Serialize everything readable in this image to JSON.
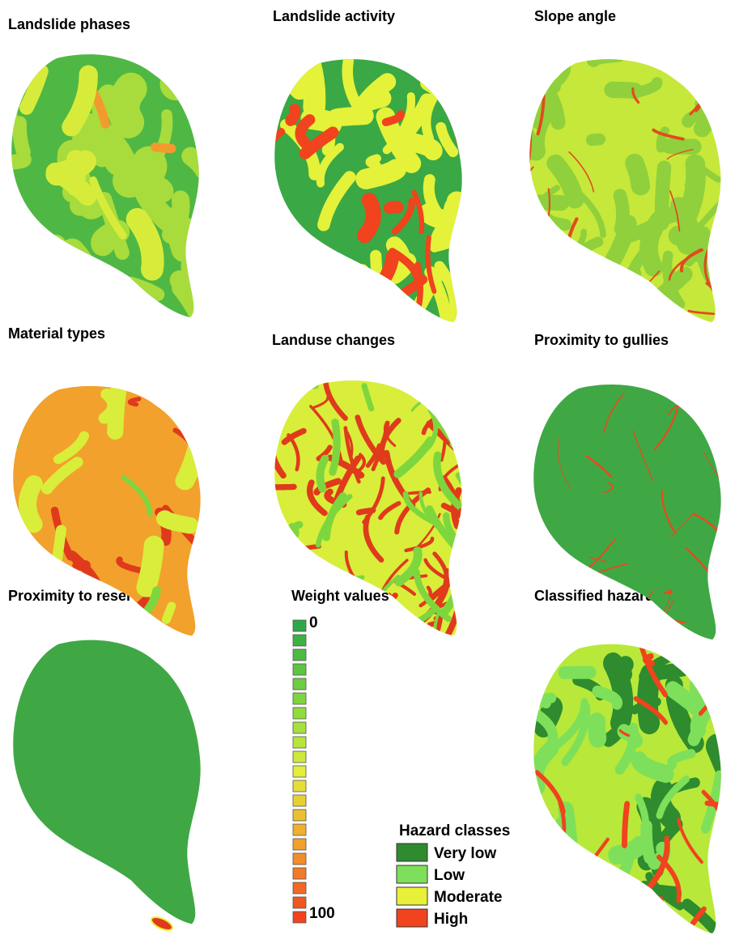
{
  "panels": [
    {
      "title": "Landslide phases"
    },
    {
      "title": "Landslide activity"
    },
    {
      "title": "Slope angle"
    },
    {
      "title": "Material types"
    },
    {
      "title": "Landuse changes"
    },
    {
      "title": "Proximity to gullies"
    },
    {
      "title": "Proximity to reservoir"
    },
    {
      "title": "Classified hazard map"
    }
  ],
  "weight_scale": {
    "title": "Weight values",
    "min_label": "0",
    "max_label": "100"
  },
  "hazard_legend": {
    "title": "Hazard classes",
    "classes": [
      {
        "label": "Very low",
        "color": "#2e8b2e"
      },
      {
        "label": "Low",
        "color": "#7ee05a"
      },
      {
        "label": "Moderate",
        "color": "#e8f03a"
      },
      {
        "label": "High",
        "color": "#f0431e"
      }
    ]
  }
}
